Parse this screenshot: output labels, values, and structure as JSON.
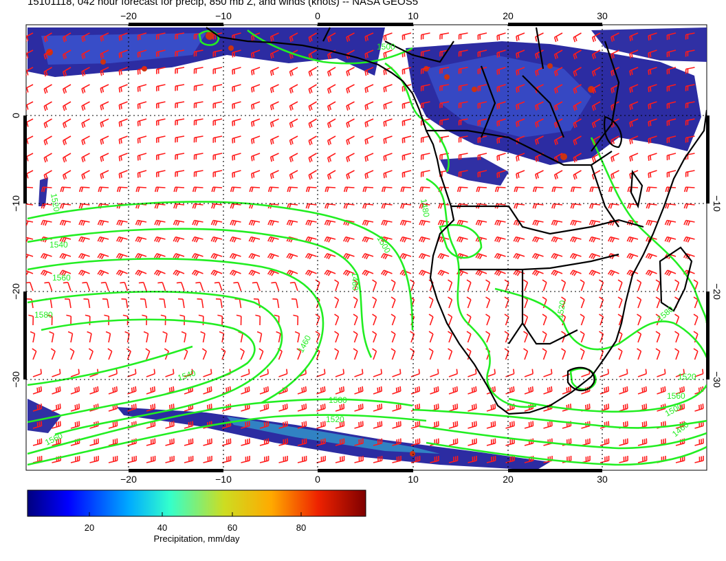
{
  "title": "15101118, 042 hour forecast for precip, 850 mb Z, and winds (knots) -- NASA GEOS5",
  "map": {
    "lon_ticks": [
      "−20",
      "−10",
      "0",
      "10",
      "20",
      "30"
    ],
    "lat_ticks": [
      "0",
      "−10",
      "−20",
      "−30"
    ],
    "contour_labels": [
      "1520",
      "1540",
      "1560",
      "1580",
      "1500",
      "1480",
      "1460",
      "1540",
      "1560",
      "1580",
      "1520",
      "1500",
      "1480",
      "1520",
      "1580",
      "1560",
      "1520",
      "1500",
      "1460"
    ],
    "colors": {
      "contour": "#22ee22",
      "barb": "#ff1a1a",
      "coast": "#000000",
      "precip_low": "#1a1a9a",
      "precip_mid": "#3d5bd8",
      "precip_high": "#cc3311"
    }
  },
  "colorbar": {
    "ticks": [
      "20",
      "40",
      "60",
      "80"
    ],
    "label": "Precipitation, mm/day",
    "colors": [
      "#00007f",
      "#0000ff",
      "#00bfff",
      "#33ffcc",
      "#ccdd22",
      "#ffaa00",
      "#ee2200",
      "#7f0000"
    ]
  }
}
